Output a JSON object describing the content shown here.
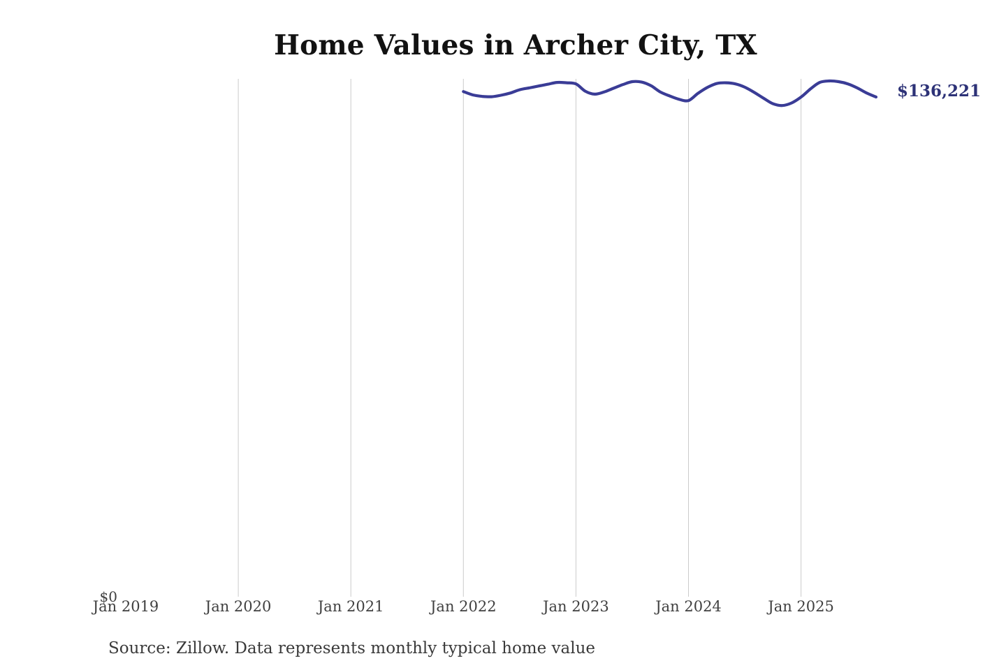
{
  "header": {
    "title": "Home Values in Archer City, TX"
  },
  "footer": {
    "source": "Source: Zillow. Data represents monthly typical home value"
  },
  "chart_data": {
    "type": "line",
    "title": "Home Values in Archer City, TX",
    "subtitle": "",
    "legend": "none",
    "grid": "vertical-only",
    "end_label": "$136,221",
    "end_value": 136221,
    "y_axis": {
      "zero_label": "$0",
      "min": 0,
      "max_estimate": 143000,
      "unit": "USD"
    },
    "x_axis": {
      "ticks": [
        {
          "label": "Jan 2019",
          "gridline": false
        },
        {
          "label": "Jan 2020",
          "gridline": true
        },
        {
          "label": "Jan 2021",
          "gridline": true
        },
        {
          "label": "Jan 2022",
          "gridline": true
        },
        {
          "label": "Jan 2023",
          "gridline": true
        },
        {
          "label": "Jan 2024",
          "gridline": true
        },
        {
          "label": "Jan 2025",
          "gridline": true
        }
      ]
    },
    "series": [
      {
        "name": "Monthly typical home value",
        "x": [
          "2022-01",
          "2022-02",
          "2022-03",
          "2022-04",
          "2022-05",
          "2022-06",
          "2022-07",
          "2022-08",
          "2022-09",
          "2022-10",
          "2022-11",
          "2022-12",
          "2023-01",
          "2023-02",
          "2023-03",
          "2023-04",
          "2023-05",
          "2023-06",
          "2023-07",
          "2023-08",
          "2023-09",
          "2023-10",
          "2023-11",
          "2023-12",
          "2024-01",
          "2024-02",
          "2024-03",
          "2024-04",
          "2024-05",
          "2024-06",
          "2024-07",
          "2024-08",
          "2024-09",
          "2024-10",
          "2024-11",
          "2024-12",
          "2025-01",
          "2025-02",
          "2025-03",
          "2025-04",
          "2025-05",
          "2025-06",
          "2025-07",
          "2025-08",
          "2025-09"
        ],
        "values": [
          137700,
          136800,
          136400,
          136300,
          136700,
          137300,
          138200,
          138700,
          139200,
          139700,
          140200,
          140100,
          139800,
          137800,
          137000,
          137600,
          138600,
          139600,
          140400,
          140300,
          139300,
          137600,
          136500,
          135600,
          135250,
          137200,
          138800,
          139900,
          140100,
          139800,
          138900,
          137500,
          135900,
          134400,
          133900,
          134600,
          136200,
          138400,
          140200,
          140600,
          140400,
          139800,
          138700,
          137300,
          136221
        ]
      }
    ],
    "colors": {
      "line": "#3a3c96",
      "end_label": "#2d3277",
      "gridline": "#cbcbcb",
      "tick_text": "#404040",
      "title_text": "#121212"
    }
  }
}
